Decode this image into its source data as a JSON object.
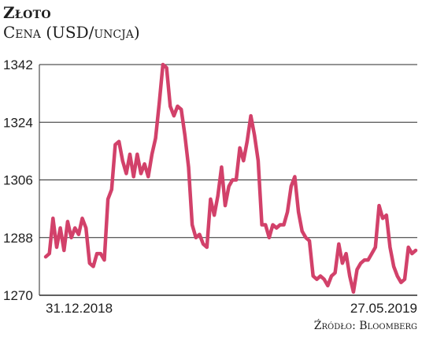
{
  "chart_data": {
    "type": "line",
    "title": "Złoto",
    "subtitle": "Cena (USD/uncja)",
    "source": "Źródło: Bloomberg",
    "xlabel": "",
    "ylabel": "",
    "x_tick_labels": [
      "31.12.2018",
      "27.05.2019"
    ],
    "y_ticks": [
      1270,
      1288,
      1306,
      1324,
      1342
    ],
    "ylim": [
      1270,
      1342
    ],
    "grid": true,
    "line_color": "#d2416a",
    "series": [
      {
        "values": [
          1282,
          1283,
          1294,
          1285,
          1291,
          1284,
          1293,
          1288,
          1291,
          1289,
          1294,
          1291,
          1280,
          1279,
          1283,
          1283,
          1281,
          1300,
          1303,
          1317,
          1318,
          1312,
          1308,
          1314,
          1307,
          1314,
          1308,
          1311,
          1307,
          1314,
          1319,
          1330,
          1342,
          1341,
          1329,
          1326,
          1329,
          1328,
          1320,
          1310,
          1292,
          1288,
          1289,
          1286,
          1285,
          1300,
          1295,
          1301,
          1310,
          1298,
          1304,
          1306,
          1306,
          1316,
          1312,
          1318,
          1326,
          1320,
          1312,
          1292,
          1292,
          1288,
          1292,
          1291,
          1292,
          1292,
          1296,
          1304,
          1307,
          1296,
          1290,
          1288,
          1287,
          1276,
          1275,
          1276,
          1275,
          1273,
          1276,
          1277,
          1286,
          1280,
          1283,
          1276,
          1271,
          1278,
          1280,
          1281,
          1281,
          1283,
          1285,
          1298,
          1294,
          1295,
          1285,
          1279,
          1276,
          1274,
          1275,
          1285,
          1283,
          1284
        ]
      }
    ]
  }
}
